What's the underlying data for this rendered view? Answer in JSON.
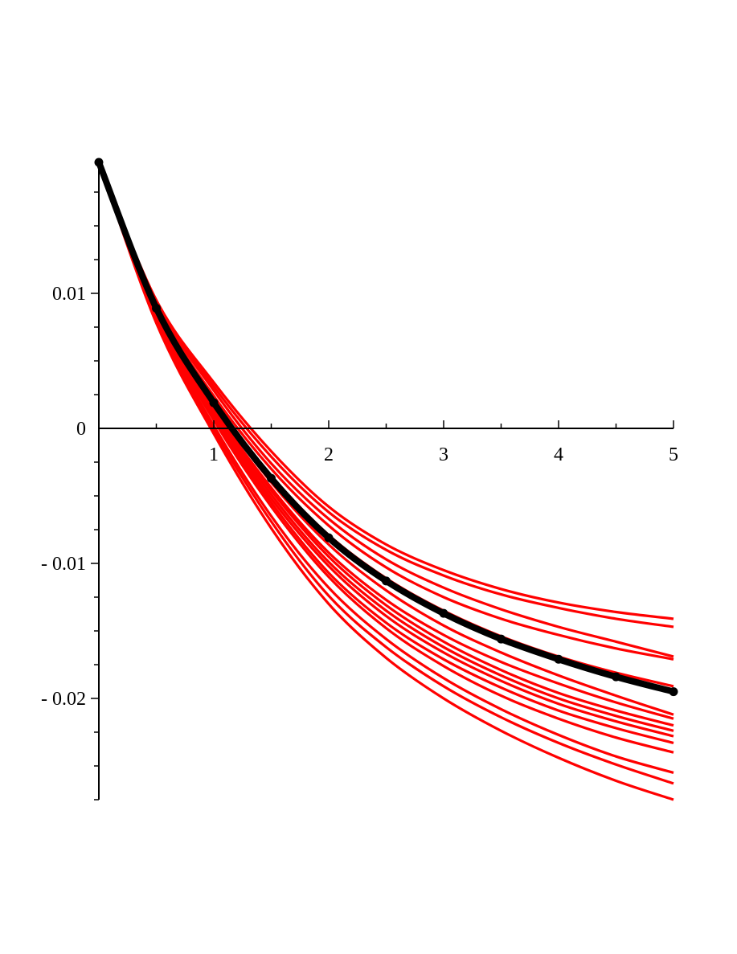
{
  "chart_data": {
    "type": "line",
    "title": "",
    "xlabel": "",
    "ylabel": "",
    "xlim": [
      0,
      5
    ],
    "ylim": [
      -0.0275,
      0.02
    ],
    "x_ticks": [
      {
        "value": 1,
        "label": "1"
      },
      {
        "value": 2,
        "label": "2"
      },
      {
        "value": 3,
        "label": "3"
      },
      {
        "value": 4,
        "label": "4"
      },
      {
        "value": 5,
        "label": "5"
      }
    ],
    "y_ticks": [
      {
        "value": 0.01,
        "label": "0.01"
      },
      {
        "value": 0,
        "label": "0"
      },
      {
        "value": -0.01,
        "label": "- 0.01"
      },
      {
        "value": -0.02,
        "label": "- 0.02"
      }
    ],
    "x": [
      0,
      0.5,
      1,
      1.5,
      2,
      2.5,
      3,
      3.5,
      4,
      4.5,
      5
    ],
    "series": [
      {
        "role": "reference",
        "color": "#000000",
        "values": [
          0.0197,
          0.0089,
          0.0019,
          -0.0037,
          -0.0081,
          -0.0113,
          -0.0137,
          -0.0156,
          -0.0171,
          -0.0184,
          -0.0195
        ]
      },
      {
        "role": "sample",
        "color": "#ff0000",
        "values": [
          0.0197,
          0.0095,
          0.0034,
          -0.0017,
          -0.0058,
          -0.0086,
          -0.0105,
          -0.0119,
          -0.0129,
          -0.0136,
          -0.0141
        ]
      },
      {
        "role": "sample",
        "color": "#ff0000",
        "values": [
          0.0197,
          0.0094,
          0.0031,
          -0.0021,
          -0.0062,
          -0.009,
          -0.0109,
          -0.0123,
          -0.0133,
          -0.0141,
          -0.0147
        ]
      },
      {
        "role": "sample",
        "color": "#ff0000",
        "values": [
          0.0197,
          0.0093,
          0.0028,
          -0.0026,
          -0.0067,
          -0.0097,
          -0.0118,
          -0.0134,
          -0.0147,
          -0.0158,
          -0.0169
        ]
      },
      {
        "role": "sample",
        "color": "#ff0000",
        "values": [
          0.0197,
          0.009,
          0.002,
          -0.0035,
          -0.0079,
          -0.0111,
          -0.0135,
          -0.0154,
          -0.0169,
          -0.0181,
          -0.0191
        ]
      },
      {
        "role": "sample",
        "color": "#ff0000",
        "values": [
          0.0197,
          0.0088,
          0.0015,
          -0.0044,
          -0.0092,
          -0.0127,
          -0.0153,
          -0.0173,
          -0.0189,
          -0.0203,
          -0.0215
        ]
      },
      {
        "role": "sample",
        "color": "#ff0000",
        "values": [
          0.0197,
          0.0086,
          0.0012,
          -0.0049,
          -0.0099,
          -0.0135,
          -0.0162,
          -0.0183,
          -0.02,
          -0.0213,
          -0.0224
        ]
      },
      {
        "role": "sample",
        "color": "#ff0000",
        "values": [
          0.0197,
          0.0084,
          0.0008,
          -0.0055,
          -0.0107,
          -0.0144,
          -0.0171,
          -0.0192,
          -0.0209,
          -0.0222,
          -0.0233
        ]
      },
      {
        "role": "sample",
        "color": "#ff0000",
        "values": [
          0.0197,
          0.0081,
          0.0002,
          -0.0065,
          -0.0118,
          -0.0156,
          -0.0185,
          -0.0208,
          -0.0227,
          -0.0243,
          -0.0255
        ]
      },
      {
        "role": "sample",
        "color": "#ff0000",
        "values": [
          0.0197,
          0.0078,
          -0.0004,
          -0.0074,
          -0.013,
          -0.017,
          -0.02,
          -0.0224,
          -0.0244,
          -0.0261,
          -0.0275
        ]
      },
      {
        "role": "sample",
        "color": "#ff0000",
        "values": [
          0.0197,
          0.0087,
          0.0014,
          -0.0046,
          -0.0095,
          -0.0131,
          -0.0158,
          -0.0179,
          -0.0196,
          -0.0209,
          -0.022
        ]
      },
      {
        "role": "sample",
        "color": "#ff0000",
        "values": [
          0.0197,
          0.0085,
          0.001,
          -0.0052,
          -0.0102,
          -0.0139,
          -0.0166,
          -0.0187,
          -0.0204,
          -0.0217,
          -0.0228
        ]
      },
      {
        "role": "sample",
        "color": "#ff0000",
        "values": [
          0.0197,
          0.0079,
          -0.0001,
          -0.0069,
          -0.0124,
          -0.0162,
          -0.0191,
          -0.0214,
          -0.0233,
          -0.0249,
          -0.0263
        ]
      },
      {
        "role": "sample",
        "color": "#ff0000",
        "values": [
          0.0197,
          0.0091,
          0.0024,
          -0.003,
          -0.0072,
          -0.0103,
          -0.0125,
          -0.0141,
          -0.0153,
          -0.0163,
          -0.0171
        ]
      },
      {
        "role": "sample",
        "color": "#ff0000",
        "values": [
          0.0197,
          0.0083,
          0.0006,
          -0.0058,
          -0.011,
          -0.0148,
          -0.0176,
          -0.0198,
          -0.0215,
          -0.0229,
          -0.024
        ]
      },
      {
        "role": "sample",
        "color": "#ff0000",
        "values": [
          0.0197,
          0.0089,
          0.0018,
          -0.004,
          -0.0086,
          -0.012,
          -0.0146,
          -0.0166,
          -0.0183,
          -0.0198,
          -0.0212
        ]
      }
    ]
  }
}
